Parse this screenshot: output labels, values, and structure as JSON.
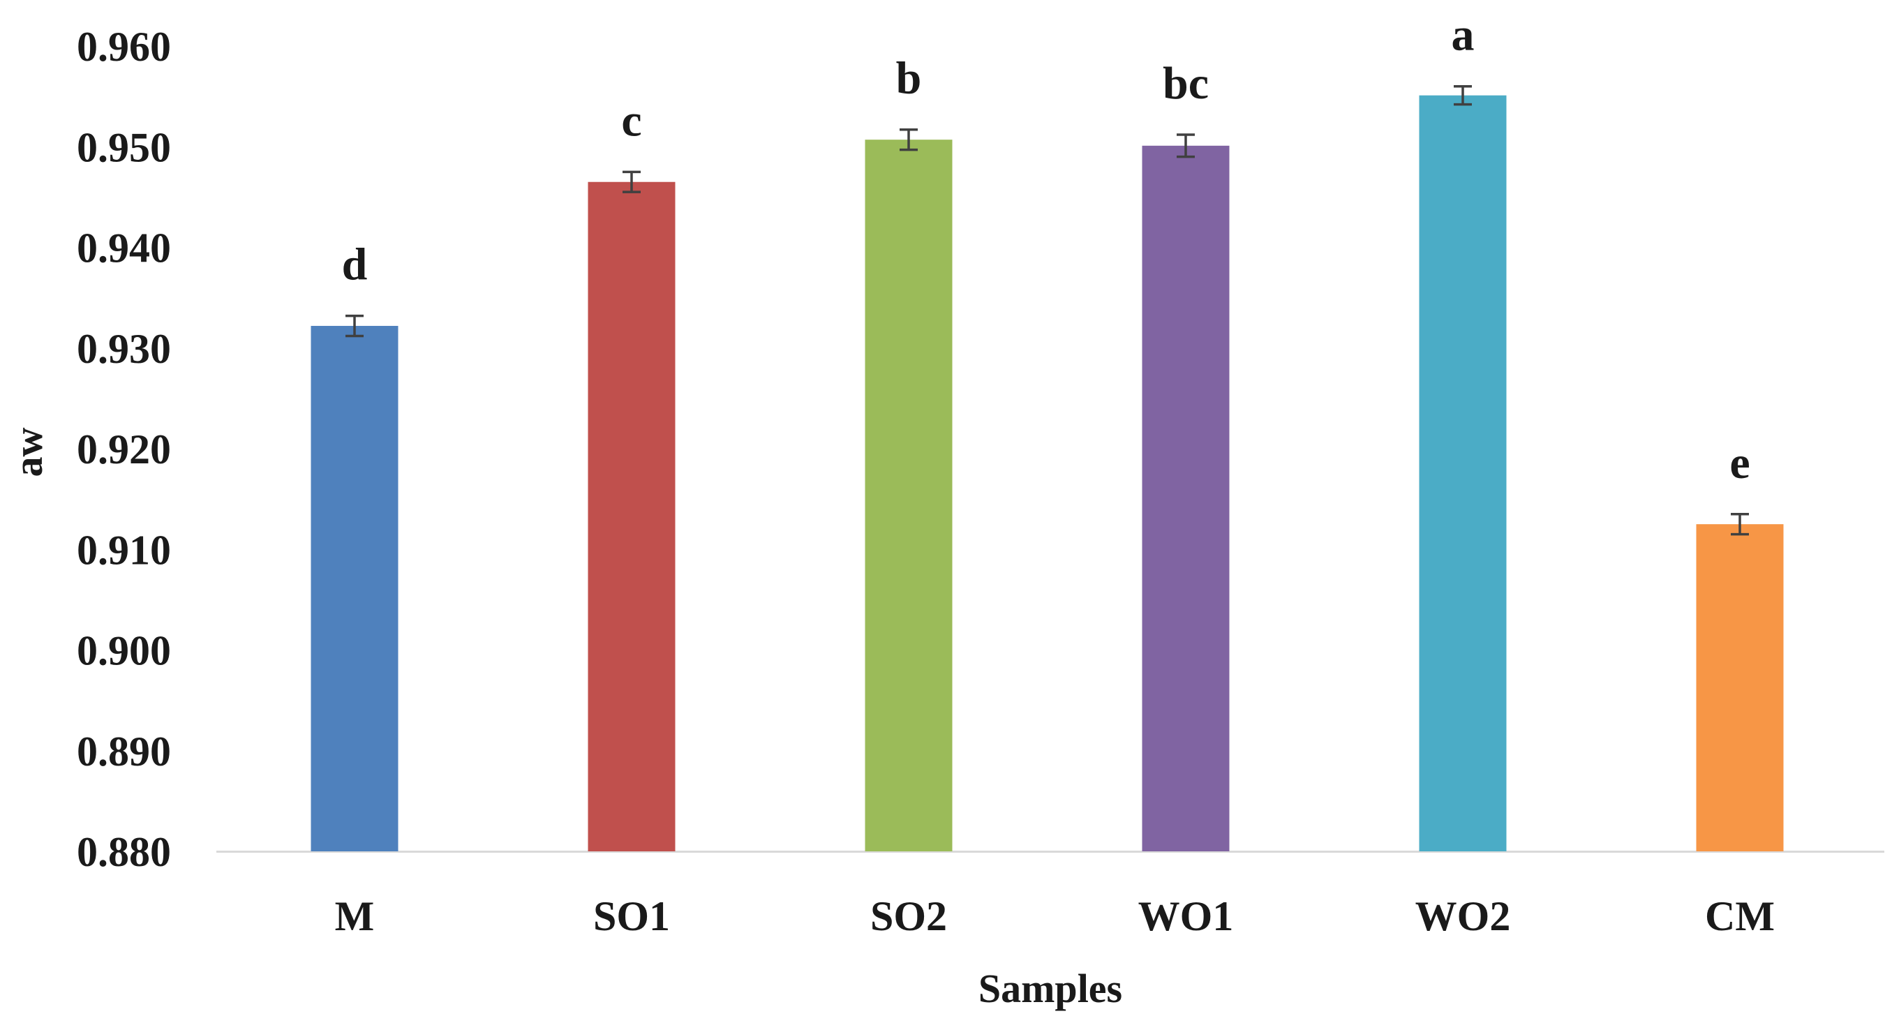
{
  "chart_data": {
    "type": "bar",
    "title": "",
    "xlabel": "Samples",
    "ylabel": "aw",
    "ylim": [
      0.88,
      0.96
    ],
    "yticks": [
      "0.880",
      "0.890",
      "0.900",
      "0.910",
      "0.920",
      "0.930",
      "0.940",
      "0.950",
      "0.960"
    ],
    "grid": false,
    "legend": "none",
    "categories": [
      "M",
      "SO1",
      "SO2",
      "WO1",
      "WO2",
      "CM"
    ],
    "values": [
      0.9322,
      0.9465,
      0.9507,
      0.9501,
      0.9551,
      0.9125
    ],
    "errors": [
      0.001,
      0.001,
      0.001,
      0.0011,
      0.0009,
      0.001
    ],
    "significance_letters": [
      "d",
      "c",
      "b",
      "bc",
      "a",
      "e"
    ],
    "colors": [
      "#4f81bd",
      "#c0504d",
      "#9bbb59",
      "#8064a2",
      "#4bacc6",
      "#f79646"
    ],
    "error_bar_color": "#404040",
    "axis_color": "#d9d9d9"
  }
}
